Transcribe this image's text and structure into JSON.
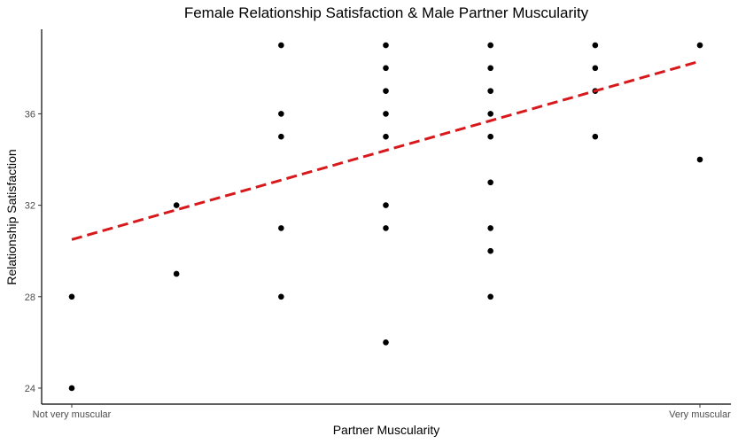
{
  "chart_data": {
    "type": "scatter",
    "title": "Female Relationship Satisfaction & Male Partner Muscularity",
    "xlabel": "Partner Muscularity",
    "ylabel": "Relationship Satisfaction",
    "x_scale": [
      1,
      7
    ],
    "x_tick_labels": [
      {
        "x": 1,
        "label": "Not very muscular"
      },
      {
        "x": 7,
        "label": "Very muscular"
      }
    ],
    "y_ticks": [
      24,
      28,
      32,
      36
    ],
    "ylim": [
      23.3,
      39.7
    ],
    "grid": false,
    "points": [
      {
        "x": 1,
        "y": 28
      },
      {
        "x": 1,
        "y": 24
      },
      {
        "x": 2,
        "y": 32
      },
      {
        "x": 2,
        "y": 29
      },
      {
        "x": 3,
        "y": 39
      },
      {
        "x": 3,
        "y": 36
      },
      {
        "x": 3,
        "y": 35
      },
      {
        "x": 3,
        "y": 31
      },
      {
        "x": 3,
        "y": 28
      },
      {
        "x": 4,
        "y": 39
      },
      {
        "x": 4,
        "y": 38
      },
      {
        "x": 4,
        "y": 37
      },
      {
        "x": 4,
        "y": 36
      },
      {
        "x": 4,
        "y": 35
      },
      {
        "x": 4,
        "y": 32
      },
      {
        "x": 4,
        "y": 31
      },
      {
        "x": 4,
        "y": 26
      },
      {
        "x": 5,
        "y": 39
      },
      {
        "x": 5,
        "y": 38
      },
      {
        "x": 5,
        "y": 37
      },
      {
        "x": 5,
        "y": 36
      },
      {
        "x": 5,
        "y": 35
      },
      {
        "x": 5,
        "y": 33
      },
      {
        "x": 5,
        "y": 31
      },
      {
        "x": 5,
        "y": 30
      },
      {
        "x": 5,
        "y": 28
      },
      {
        "x": 6,
        "y": 39
      },
      {
        "x": 6,
        "y": 38
      },
      {
        "x": 6,
        "y": 37
      },
      {
        "x": 6,
        "y": 35
      },
      {
        "x": 7,
        "y": 39
      },
      {
        "x": 7,
        "y": 34
      }
    ],
    "trend_line": {
      "style": "dashed",
      "start": {
        "x": 1,
        "y": 30.5
      },
      "end": {
        "x": 7,
        "y": 38.3
      }
    },
    "colors": {
      "points": "#000000",
      "trend_line": "#d7191c",
      "axes": "#000000",
      "tick_labels": "#4d4d4d"
    }
  }
}
